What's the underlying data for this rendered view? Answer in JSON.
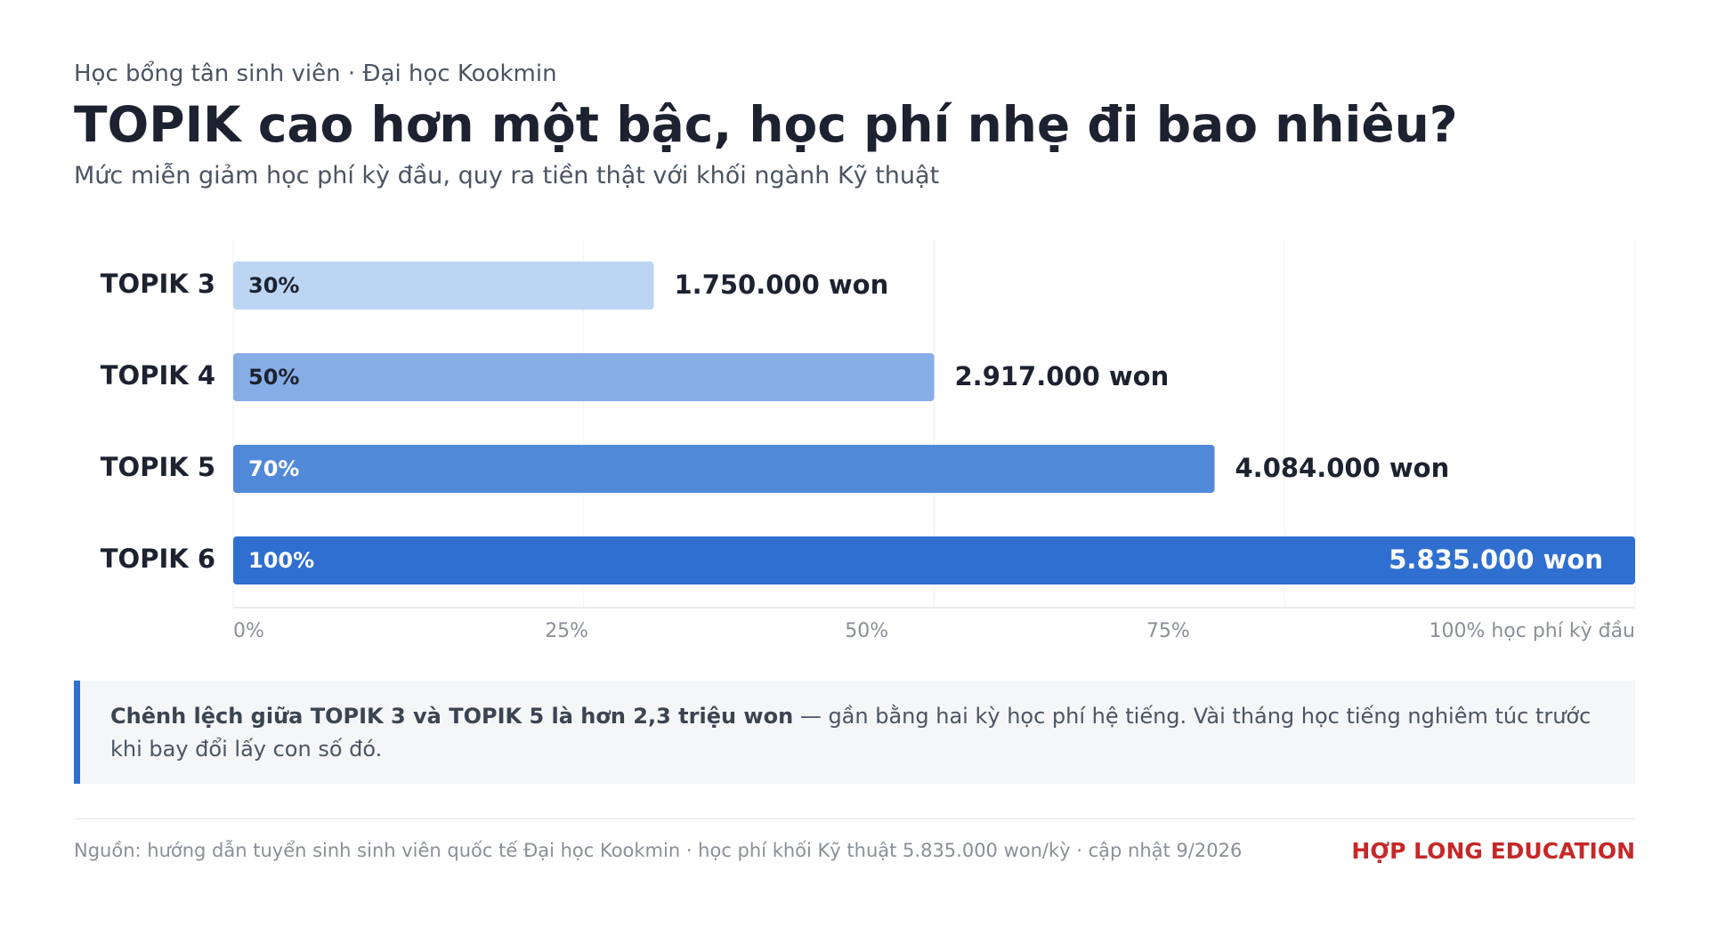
{
  "header": {
    "kicker": "Học bổng tân sinh viên · Đại học Kookmin",
    "title": "TOPIK cao hơn một bậc, học phí nhẹ đi bao nhiêu?",
    "subtitle": "Mức miễn giảm học phí kỳ đầu, quy ra tiền thật với khối ngành Kỹ thuật"
  },
  "chart_data": {
    "type": "hbar",
    "categories": [
      "TOPIK 3",
      "TOPIK 4",
      "TOPIK 5",
      "TOPIK 6"
    ],
    "values": [
      30,
      50,
      70,
      100
    ],
    "value_labels": [
      "30%",
      "50%",
      "70%",
      "100%"
    ],
    "colors": [
      "#bcd5f2",
      "#86ade6",
      "#5189d9",
      "#2f6fcf"
    ],
    "amounts": {
      "values": [
        1750000,
        2917000,
        4084000,
        5835000
      ],
      "value_labels": [
        "1.750.000 won",
        "2.917.000 won",
        "4.084.000 won",
        "5.835.000 won"
      ]
    },
    "xlim": [
      0,
      100
    ],
    "xticks": [
      {
        "value": 0,
        "label": "0%"
      },
      {
        "value": 25,
        "label": "25%"
      },
      {
        "value": 50,
        "label": "50%"
      },
      {
        "value": 75,
        "label": "75%"
      },
      {
        "value": 100,
        "label": "100% học phí kỳ đầu"
      }
    ],
    "grid": true
  },
  "callout": {
    "bold": "Chênh lệch giữa TOPIK 3 và TOPIK 5 là hơn 2,3 triệu won",
    "text": " — gần bằng hai kỳ học phí hệ tiếng. Vài tháng học tiếng nghiêm túc trước khi bay đổi lấy con số đó."
  },
  "footer": {
    "source": "Nguồn: hướng dẫn tuyển sinh sinh viên quốc tế Đại học Kookmin · học phí khối Kỹ thuật 5.835.000 won/kỳ · cập nhật 9/2026",
    "brand": "HỢP LONG EDUCATION"
  }
}
